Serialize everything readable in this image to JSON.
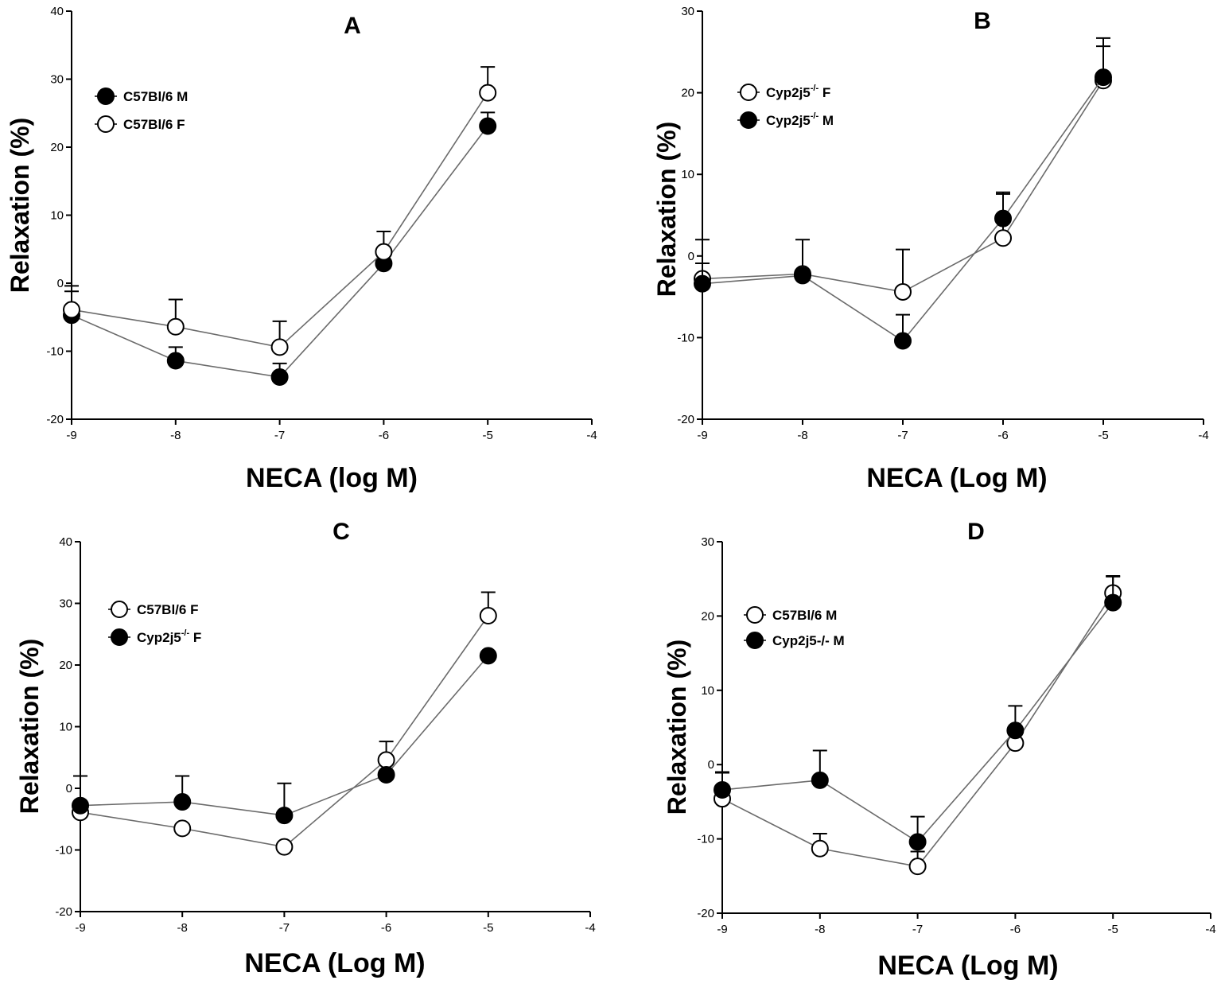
{
  "chart_data": [
    {
      "type": "line",
      "title": "A",
      "xlabel": "NECA (log M)",
      "ylabel": "Relaxation (%)",
      "x": [
        -9,
        -8,
        -7,
        -6,
        -5
      ],
      "xlim": [
        -9,
        -4
      ],
      "ylim": [
        -20,
        40
      ],
      "xticks": [
        "-9",
        "-8",
        "-7",
        "-6",
        "-5",
        "-4"
      ],
      "yticks": [
        "-20",
        "-10",
        "0",
        "10",
        "20",
        "30",
        "40"
      ],
      "grid": false,
      "legend_position": "top-left",
      "series": [
        {
          "name": "C57Bl/6 M",
          "base": "C57Bl/6 M",
          "sup": "",
          "suffix": "",
          "marker": "filled",
          "values": [
            -4.7,
            -11.4,
            -13.8,
            2.9,
            23.1
          ],
          "errors": [
            3.5,
            2.0,
            2.0,
            0,
            2.0
          ]
        },
        {
          "name": "C57Bl/6 F",
          "base": "C57Bl/6 F",
          "sup": "",
          "suffix": "",
          "marker": "open",
          "values": [
            -3.9,
            -6.4,
            -9.4,
            4.6,
            28.0
          ],
          "errors": [
            3.5,
            4.0,
            3.8,
            3.0,
            3.8
          ]
        }
      ]
    },
    {
      "type": "line",
      "title": "B",
      "xlabel": "NECA (Log M)",
      "ylabel": "Relaxation (%)",
      "x": [
        -9,
        -8,
        -7,
        -6,
        -5
      ],
      "xlim": [
        -9,
        -4
      ],
      "ylim": [
        -20,
        30
      ],
      "xticks": [
        "-9",
        "-8",
        "-7",
        "-6",
        "-5",
        "-4"
      ],
      "yticks": [
        "-20",
        "-10",
        "0",
        "10",
        "20",
        "30"
      ],
      "grid": false,
      "legend_position": "top-left",
      "series": [
        {
          "name": "Cyp2j5-/- F",
          "base": "Cyp2j5",
          "sup": "-/-",
          "suffix": " F",
          "marker": "open",
          "values": [
            -2.8,
            -2.2,
            -4.4,
            2.2,
            21.5
          ],
          "errors": [
            4.8,
            4.2,
            5.2,
            5.4,
            5.2
          ]
        },
        {
          "name": "Cyp2j5-/- M",
          "base": "Cyp2j5",
          "sup": "-/-",
          "suffix": " M",
          "marker": "filled",
          "values": [
            -3.4,
            -2.4,
            -10.4,
            4.6,
            21.9
          ],
          "errors": [
            2.5,
            0,
            3.2,
            3.2,
            3.8
          ]
        }
      ]
    },
    {
      "type": "line",
      "title": "C",
      "xlabel": "NECA (Log M)",
      "ylabel": "Relaxation (%)",
      "x": [
        -9,
        -8,
        -7,
        -6,
        -5
      ],
      "xlim": [
        -9,
        -4
      ],
      "ylim": [
        -20,
        40
      ],
      "xticks": [
        "-9",
        "-8",
        "-7",
        "-6",
        "-5",
        "-4"
      ],
      "yticks": [
        "-20",
        "-10",
        "0",
        "10",
        "20",
        "30",
        "40"
      ],
      "grid": false,
      "legend_position": "top-left",
      "series": [
        {
          "name": "C57Bl/6 F",
          "base": "C57Bl/6 F",
          "sup": "",
          "suffix": "",
          "marker": "open",
          "values": [
            -3.9,
            -6.5,
            -9.5,
            4.6,
            28.0
          ],
          "errors": [
            0,
            0,
            0,
            3.0,
            3.8
          ]
        },
        {
          "name": "Cyp2j5-/- F",
          "base": "Cyp2j5",
          "sup": "-/-",
          "suffix": " F",
          "marker": "filled",
          "values": [
            -2.8,
            -2.2,
            -4.4,
            2.2,
            21.5
          ],
          "errors": [
            4.8,
            4.2,
            5.2,
            0,
            0
          ]
        }
      ]
    },
    {
      "type": "line",
      "title": "D",
      "xlabel": "NECA (Log M)",
      "ylabel": "Relaxation (%)",
      "x": [
        -9,
        -8,
        -7,
        -6,
        -5
      ],
      "xlim": [
        -9,
        -4
      ],
      "ylim": [
        -20,
        30
      ],
      "xticks": [
        "-9",
        "-8",
        "-7",
        "-6",
        "-5",
        "-4"
      ],
      "yticks": [
        "-20",
        "-10",
        "0",
        "10",
        "20",
        "30"
      ],
      "grid": false,
      "legend_position": "top-left",
      "series": [
        {
          "name": "C57Bl/6 M",
          "base": "C57Bl/6 M",
          "sup": "",
          "suffix": "",
          "marker": "open",
          "values": [
            -4.6,
            -11.3,
            -13.7,
            2.9,
            23.1
          ],
          "errors": [
            3.5,
            2.0,
            2.0,
            0,
            2.2
          ]
        },
        {
          "name": "Cyp2j5-/- M",
          "base": "Cyp2j5-/- M",
          "sup": "",
          "suffix": "",
          "marker": "filled",
          "values": [
            -3.4,
            -2.1,
            -10.4,
            4.6,
            21.8
          ],
          "errors": [
            2.4,
            4.0,
            3.4,
            3.3,
            3.6
          ]
        }
      ]
    }
  ]
}
